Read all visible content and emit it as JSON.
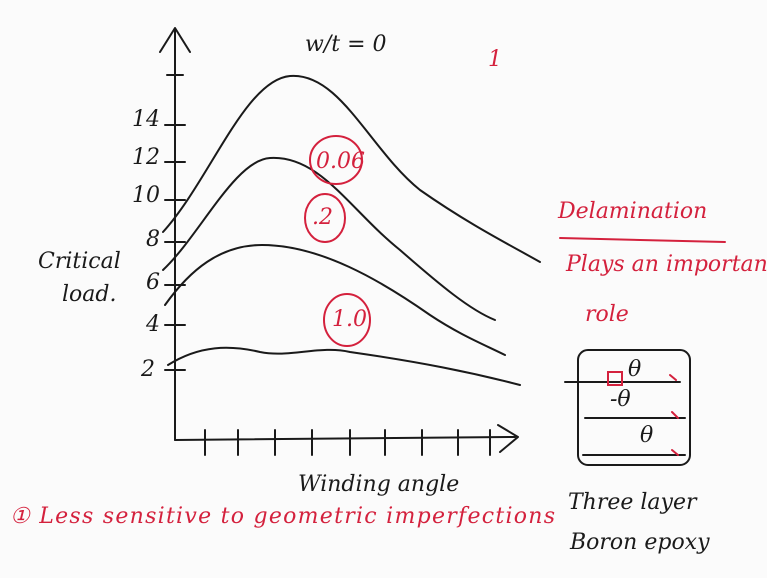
{
  "sketch": {
    "top_label": "w/t = 0",
    "page_number": "1",
    "curve_labels": [
      "0.06",
      ".2",
      "1.0"
    ],
    "y_axis_label": [
      "Critical",
      "load."
    ],
    "y_tick_labels": [
      "14",
      "12",
      "10",
      "8",
      "6",
      "4",
      "2"
    ],
    "x_axis_label": "Winding angle",
    "note_title": "Delamination",
    "note_body": [
      "Plays an important",
      "role"
    ],
    "layers": [
      "θ",
      "-θ",
      "θ"
    ],
    "layer_caption": [
      "Three layer",
      "Boron epoxy"
    ],
    "footnote": "① Less sensitive to geometric imperfections"
  }
}
